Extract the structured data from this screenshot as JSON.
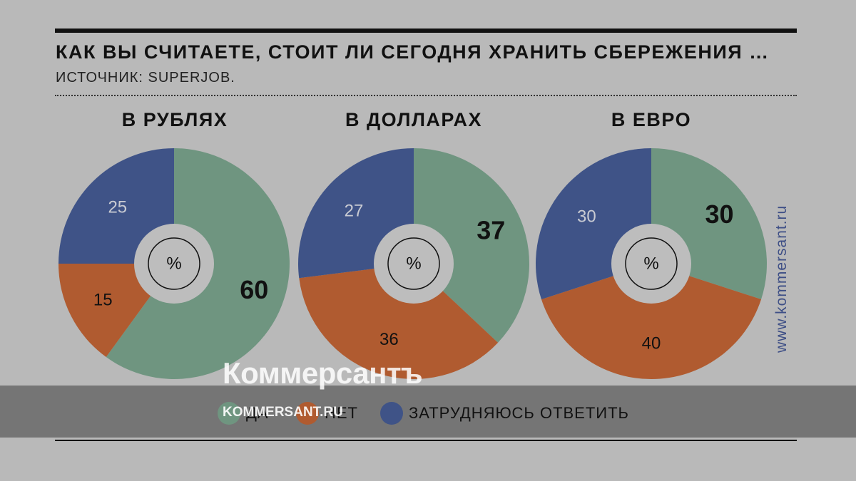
{
  "title": "КАК ВЫ СЧИТАЕТЕ, СТОИТ ЛИ СЕГОДНЯ ХРАНИТЬ СБЕРЕЖЕНИЯ …",
  "source": "ИСТОЧНИК: SUPERJOB.",
  "site_url": "www.kommersant.ru",
  "watermark": {
    "logo": "Коммерсантъ",
    "url": "KOMMERSANT.RU"
  },
  "center_label": "%",
  "colors": {
    "yes": "#6f9580",
    "no": "#b05b30",
    "unsure": "#3f5387",
    "background": "#b9b9b9",
    "hole": "#bdbdbd"
  },
  "legend": [
    {
      "label": "ДА",
      "color": "#6f9580"
    },
    {
      "label": "НЕТ",
      "color": "#b05b30"
    },
    {
      "label": "ЗАТРУДНЯЮСЬ ОТВЕТИТЬ",
      "color": "#3f5387"
    }
  ],
  "chart_data": [
    {
      "type": "pie",
      "title": "В РУБЛЯХ",
      "unit": "%",
      "categories": [
        "ДА",
        "НЕТ",
        "ЗАТРУДНЯЮСЬ ОТВЕТИТЬ"
      ],
      "values": [
        60,
        15,
        25
      ]
    },
    {
      "type": "pie",
      "title": "В ДОЛЛАРАХ",
      "unit": "%",
      "categories": [
        "ДА",
        "НЕТ",
        "ЗАТРУДНЯЮСЬ ОТВЕТИТЬ"
      ],
      "values": [
        37,
        36,
        27
      ]
    },
    {
      "type": "pie",
      "title": "В ЕВРО",
      "unit": "%",
      "categories": [
        "ДА",
        "НЕТ",
        "ЗАТРУДНЯЮСЬ ОТВЕТИТЬ"
      ],
      "values": [
        30,
        40,
        30
      ]
    }
  ]
}
